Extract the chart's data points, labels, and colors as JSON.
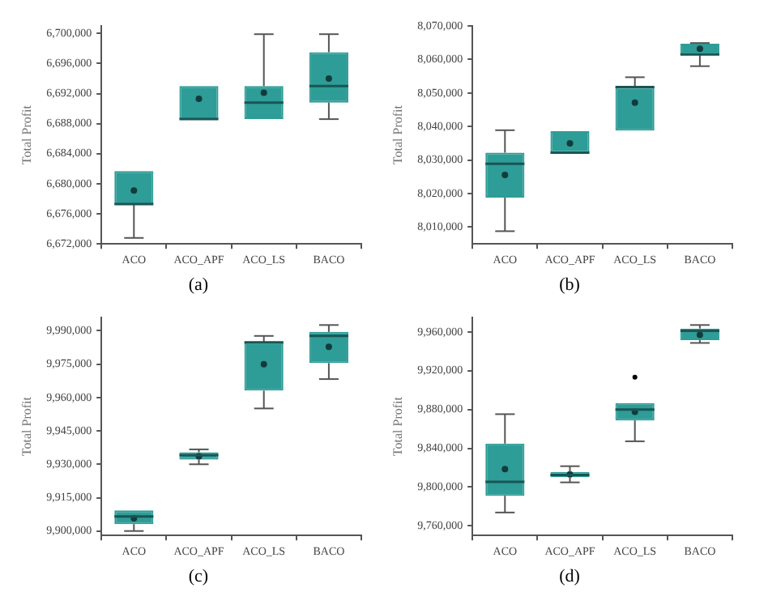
{
  "chart_data": [
    {
      "type": "box",
      "categories": [
        "ACO",
        "ACO_APF",
        "ACO_LS",
        "BACO"
      ],
      "ylabel": "Total Profit",
      "ylim": [
        6672000,
        6701000
      ],
      "yticks": [
        {
          "value": 6672000,
          "label": "6,672,000"
        },
        {
          "value": 6676000,
          "label": "6,676,000"
        },
        {
          "value": 6680000,
          "label": "6,680,000"
        },
        {
          "value": 6684000,
          "label": "6,684,000"
        },
        {
          "value": 6688000,
          "label": "6,688,000"
        },
        {
          "value": 6692000,
          "label": "6,692,000"
        },
        {
          "value": 6696000,
          "label": "6,696,000"
        },
        {
          "value": 6700000,
          "label": "6,700,000"
        }
      ],
      "grid": false,
      "annotations": [
        "(a)"
      ],
      "series": [
        {
          "color": "#2e9c97",
          "boxes": [
            {
              "low": 6672800,
              "q1": 6677300,
              "median": 6677300,
              "q3": 6681700,
              "high": 6681700,
              "mean": 6679100
            },
            {
              "low": 6688600,
              "q1": 6688600,
              "median": 6688600,
              "q3": 6693000,
              "high": 6693000,
              "mean": 6691300
            },
            {
              "low": 6688600,
              "q1": 6688600,
              "median": 6690800,
              "q3": 6693000,
              "high": 6699900,
              "mean": 6692100
            },
            {
              "low": 6688600,
              "q1": 6690800,
              "median": 6693000,
              "q3": 6697500,
              "high": 6699900,
              "mean": 6694000
            }
          ]
        }
      ]
    },
    {
      "type": "box",
      "categories": [
        "ACO",
        "ACO_APF",
        "ACO_LS",
        "BACO"
      ],
      "ylabel": "Total Profit",
      "ylim": [
        8005000,
        8070000
      ],
      "yticks": [
        {
          "value": 8010000,
          "label": "8,010,000"
        },
        {
          "value": 8020000,
          "label": "8,020,000"
        },
        {
          "value": 8030000,
          "label": "8,030,000"
        },
        {
          "value": 8040000,
          "label": "8,040,000"
        },
        {
          "value": 8050000,
          "label": "8,050,000"
        },
        {
          "value": 8060000,
          "label": "8,060,000"
        },
        {
          "value": 8070000,
          "label": "8,070,000"
        }
      ],
      "grid": false,
      "annotations": [
        "(b)"
      ],
      "series": [
        {
          "color": "#2e9c97",
          "boxes": [
            {
              "low": 8008800,
              "q1": 8018800,
              "median": 8028900,
              "q3": 8032200,
              "high": 8038900,
              "mean": 8025600
            },
            {
              "low": 8032200,
              "q1": 8032200,
              "median": 8032200,
              "q3": 8038600,
              "high": 8038600,
              "mean": 8035000
            },
            {
              "low": 8038800,
              "q1": 8038800,
              "median": 8051800,
              "q3": 8051800,
              "high": 8054700,
              "mean": 8047100
            },
            {
              "low": 8058000,
              "q1": 8061500,
              "median": 8061500,
              "q3": 8064700,
              "high": 8064900,
              "mean": 8063200
            }
          ]
        }
      ]
    },
    {
      "type": "box",
      "categories": [
        "ACO",
        "ACO_APF",
        "ACO_LS",
        "BACO"
      ],
      "ylabel": "Total Profit",
      "ylim": [
        9898000,
        9996000
      ],
      "yticks": [
        {
          "value": 9900000,
          "label": "9,900,000"
        },
        {
          "value": 9915000,
          "label": "9,915,000"
        },
        {
          "value": 9930000,
          "label": "9,930,000"
        },
        {
          "value": 9945000,
          "label": "9,945,000"
        },
        {
          "value": 9960000,
          "label": "9,960,000"
        },
        {
          "value": 9975000,
          "label": "9,975,000"
        },
        {
          "value": 9990000,
          "label": "9,990,000"
        }
      ],
      "grid": false,
      "annotations": [
        "(c)"
      ],
      "series": [
        {
          "color": "#2e9c97",
          "boxes": [
            {
              "low": 9900000,
              "q1": 9903100,
              "median": 9906500,
              "q3": 9909300,
              "high": 9909300,
              "mean": 9905700
            },
            {
              "low": 9930000,
              "q1": 9932100,
              "median": 9934100,
              "q3": 9935400,
              "high": 9936700,
              "mean": 9933600
            },
            {
              "low": 9955100,
              "q1": 9963100,
              "median": 9984800,
              "q3": 9984800,
              "high": 9987700,
              "mean": 9975000
            },
            {
              "low": 9968300,
              "q1": 9975500,
              "median": 9987700,
              "q3": 9989500,
              "high": 9992600,
              "mean": 9982800
            }
          ]
        }
      ]
    },
    {
      "type": "box",
      "categories": [
        "ACO",
        "ACO_APF",
        "ACO_LS",
        "BACO"
      ],
      "ylabel": "Total Profit",
      "ylim": [
        9750000,
        9975000
      ],
      "yticks": [
        {
          "value": 9760000,
          "label": "9,760,000"
        },
        {
          "value": 9800000,
          "label": "9,800,000"
        },
        {
          "value": 9840000,
          "label": "9,840,000"
        },
        {
          "value": 9880000,
          "label": "9,880,000"
        },
        {
          "value": 9920000,
          "label": "9,920,000"
        },
        {
          "value": 9960000,
          "label": "9,960,000"
        }
      ],
      "grid": false,
      "annotations": [
        "(d)"
      ],
      "series": [
        {
          "color": "#2e9c97",
          "boxes": [
            {
              "low": 9773700,
              "q1": 9791000,
              "median": 9805400,
              "q3": 9844800,
              "high": 9875200,
              "mean": 9818500
            },
            {
              "low": 9804800,
              "q1": 9810100,
              "median": 9812500,
              "q3": 9815500,
              "high": 9821500,
              "mean": 9813100
            },
            {
              "low": 9847200,
              "q1": 9868700,
              "median": 9880000,
              "q3": 9886600,
              "high": 9886600,
              "mean": 9877600,
              "outliers": [
                9913400
              ]
            },
            {
              "low": 9948700,
              "q1": 9951600,
              "median": 9961200,
              "q3": 9963600,
              "high": 9967200,
              "mean": 9957000
            }
          ]
        }
      ]
    }
  ]
}
